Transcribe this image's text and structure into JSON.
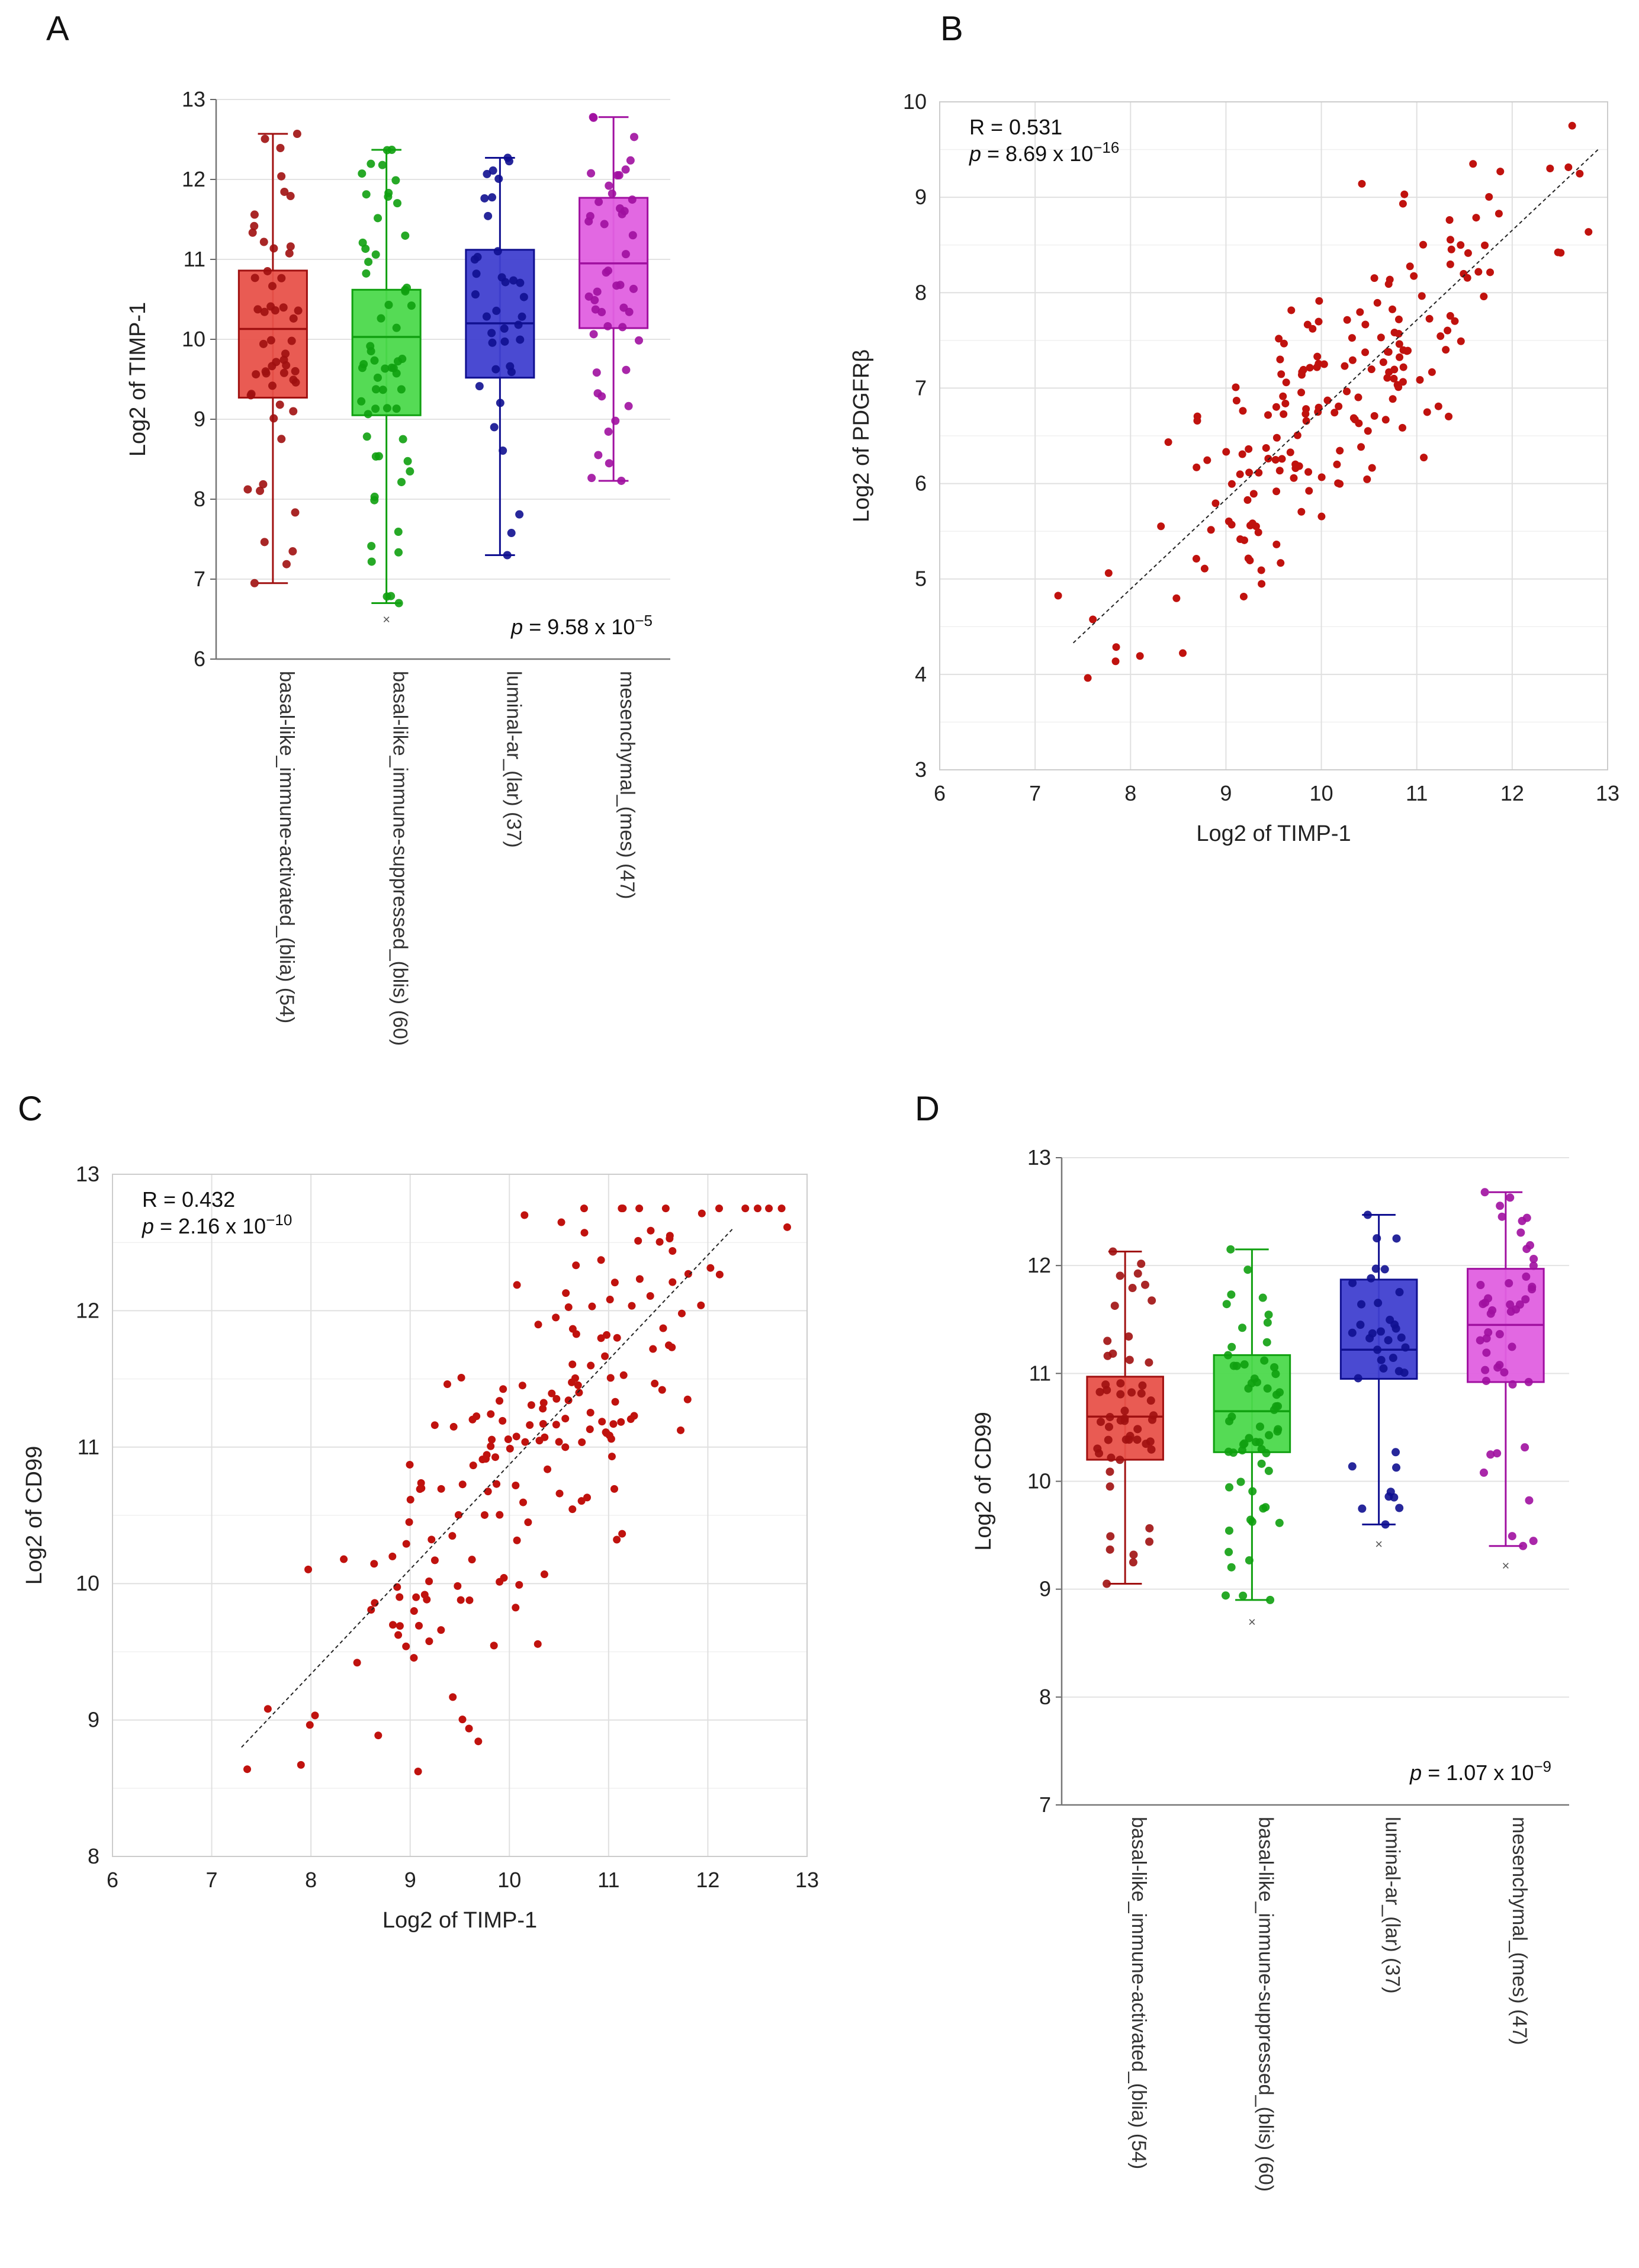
{
  "panels": {
    "A": "A",
    "B": "B",
    "C": "C",
    "D": "D"
  },
  "chart_data": [
    {
      "panel": "A",
      "type": "box",
      "ylabel": "Log2 of TIMP-1",
      "ylim": [
        6,
        13
      ],
      "yticks": [
        6,
        7,
        8,
        9,
        10,
        11,
        12,
        13
      ],
      "annotation": {
        "p_prefix": "p",
        "p_value": "= 9.58 x 10",
        "p_exp": "−5"
      },
      "categories": [
        "basal-like_immune-activated_(blia) (54)",
        "basal-like_immune-suppressed_(blis) (60)",
        "luminal-ar_(lar) (37)",
        "mesenchymal_(mes) (47)"
      ],
      "colors": {
        "fill": [
          "#e8524a",
          "#4cd94c",
          "#4040d0",
          "#e060e0"
        ],
        "edge": [
          "#a01010",
          "#10a010",
          "#101090",
          "#a010a0"
        ]
      },
      "boxes": [
        {
          "min": 6.95,
          "q1": 9.27,
          "median": 10.13,
          "q3": 10.86,
          "max": 12.57,
          "outliers": []
        },
        {
          "min": 6.7,
          "q1": 9.05,
          "median": 10.03,
          "q3": 10.62,
          "max": 12.37,
          "outliers": [
            6.5
          ]
        },
        {
          "min": 7.3,
          "q1": 9.52,
          "median": 10.2,
          "q3": 11.12,
          "max": 12.27,
          "outliers": []
        },
        {
          "min": 8.23,
          "q1": 10.14,
          "median": 10.95,
          "q3": 11.77,
          "max": 12.78,
          "outliers": []
        }
      ],
      "n": [
        54,
        60,
        37,
        47
      ]
    },
    {
      "panel": "B",
      "type": "scatter",
      "xlabel": "Log2 of TIMP-1",
      "ylabel": "Log2 of PDGFRβ",
      "xlim": [
        6,
        13
      ],
      "ylim": [
        3,
        10
      ],
      "xticks": [
        6,
        7,
        8,
        9,
        10,
        11,
        12,
        13
      ],
      "yticks": [
        3,
        4,
        5,
        6,
        7,
        8,
        9,
        10
      ],
      "annotation": {
        "r": "R = 0.531",
        "p_prefix": "p",
        "p_value": "=  8.69 x 10",
        "p_exp": "−16"
      },
      "trendline": {
        "x": [
          7.4,
          12.9
        ],
        "y": [
          4.33,
          9.5
        ]
      },
      "n_points": 190,
      "seed": 11,
      "fit": {
        "slope": 0.94,
        "intercept": -2.62,
        "noise": 0.72
      }
    },
    {
      "panel": "C",
      "type": "scatter",
      "xlabel": "Log2 of TIMP-1",
      "ylabel": "Log2 of CD99",
      "xlim": [
        6,
        13
      ],
      "ylim": [
        8,
        13
      ],
      "xticks": [
        6,
        7,
        8,
        9,
        10,
        11,
        12,
        13
      ],
      "yticks": [
        8,
        9,
        10,
        11,
        12,
        13
      ],
      "annotation": {
        "r": "R = 0.432",
        "p_prefix": "p",
        "p_value": "= 2.16 x 10",
        "p_exp": "−10"
      },
      "trendline": {
        "x": [
          7.3,
          12.25
        ],
        "y": [
          8.8,
          12.6
        ]
      },
      "n_points": 185,
      "seed": 23,
      "fit": {
        "slope": 0.76,
        "intercept": 3.2,
        "noise": 0.58
      }
    },
    {
      "panel": "D",
      "type": "box",
      "ylabel": "Log2 of CD99",
      "ylim": [
        7,
        13
      ],
      "yticks": [
        7,
        8,
        9,
        10,
        11,
        12,
        13
      ],
      "annotation": {
        "p_prefix": "p",
        "p_value": "= 1.07 x 10",
        "p_exp": "−9"
      },
      "categories": [
        "basal-like_immune-activated_(blia) (54)",
        "basal-like_immune-suppressed_(blis) (60)",
        "luminal-ar_(lar) (37)",
        "mesenchymal_(mes) (47)"
      ],
      "colors": {
        "fill": [
          "#e8524a",
          "#4cd94c",
          "#4040d0",
          "#e060e0"
        ],
        "edge": [
          "#a01010",
          "#10a010",
          "#101090",
          "#a010a0"
        ]
      },
      "boxes": [
        {
          "min": 9.05,
          "q1": 10.2,
          "median": 10.6,
          "q3": 10.97,
          "max": 12.13,
          "outliers": []
        },
        {
          "min": 8.9,
          "q1": 10.27,
          "median": 10.65,
          "q3": 11.17,
          "max": 12.15,
          "outliers": [
            8.7
          ]
        },
        {
          "min": 9.6,
          "q1": 10.95,
          "median": 11.22,
          "q3": 11.87,
          "max": 12.47,
          "outliers": [
            9.42
          ]
        },
        {
          "min": 9.4,
          "q1": 10.92,
          "median": 11.45,
          "q3": 11.97,
          "max": 12.68,
          "outliers": [
            9.22
          ]
        }
      ],
      "n": [
        54,
        60,
        37,
        47
      ]
    }
  ]
}
